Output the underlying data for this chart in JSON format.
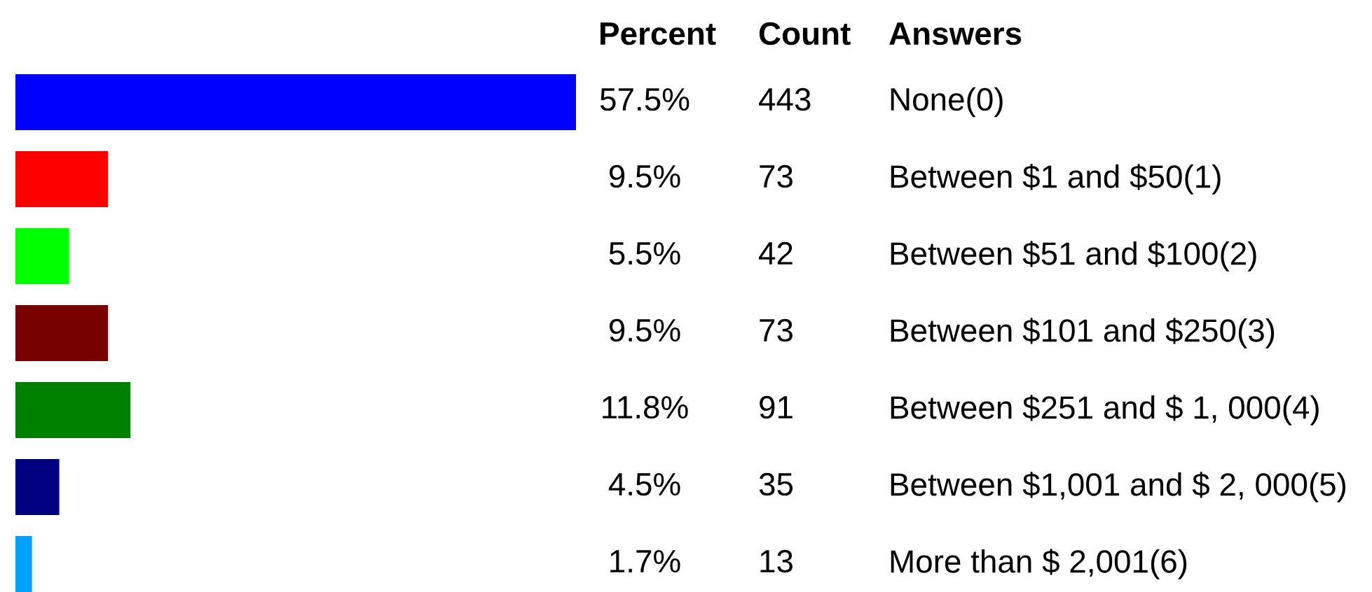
{
  "chart_data": {
    "type": "bar",
    "orientation": "horizontal",
    "categories": [
      "None(0)",
      "Between $1 and $50(1)",
      "Between $51 and $100(2)",
      "Between $101 and $250(3)",
      "Between $251 and $ 1, 000(4)",
      "Between $1,001 and $ 2, 000(5)",
      "More than $ 2,001(6)"
    ],
    "values": [
      57.5,
      9.5,
      5.5,
      9.5,
      11.8,
      4.5,
      1.7
    ],
    "colors": [
      "#0000ff",
      "#ff0000",
      "#00ff00",
      "#770000",
      "#008000",
      "#000080",
      "#00a2ff"
    ],
    "value_labels": [
      "57.5%",
      "9.5%",
      "5.5%",
      "9.5%",
      "11.8%",
      "4.5%",
      "1.7%"
    ],
    "annotations": [
      "Percent",
      "Count",
      "Answers",
      "443",
      "73",
      "42",
      "73",
      "91",
      "35",
      "13"
    ]
  }
}
